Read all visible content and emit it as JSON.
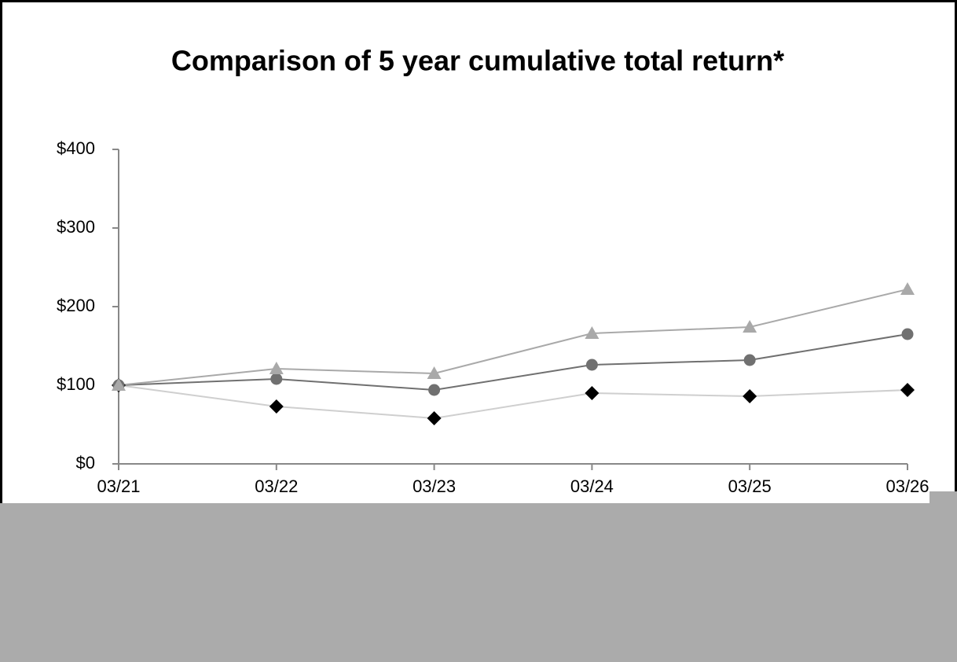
{
  "chart_data": {
    "type": "line",
    "title": "Comparison of 5 year cumulative total return*",
    "categories": [
      "03/21",
      "03/22",
      "03/23",
      "03/24",
      "03/25",
      "03/26"
    ],
    "series": [
      {
        "color": "#cfcfcf",
        "marker": "diamond",
        "marker_color": "#000000",
        "values": [
          100,
          73,
          58,
          90,
          86,
          94
        ]
      },
      {
        "color": "#707070",
        "marker": "circle",
        "marker_color": "#707070",
        "values": [
          100,
          108,
          94,
          126,
          132,
          165
        ]
      },
      {
        "color": "#a9a9a9",
        "marker": "triangle",
        "marker_color": "#a9a9a9",
        "values": [
          100,
          121,
          115,
          166,
          174,
          222
        ]
      }
    ],
    "ylim": [
      0,
      400
    ],
    "yticks": [
      {
        "value": 0,
        "label": "$0"
      },
      {
        "value": 100,
        "label": "$100"
      },
      {
        "value": 200,
        "label": "$200"
      },
      {
        "value": 300,
        "label": "$300"
      },
      {
        "value": 400,
        "label": "$400"
      }
    ],
    "grid": false
  }
}
